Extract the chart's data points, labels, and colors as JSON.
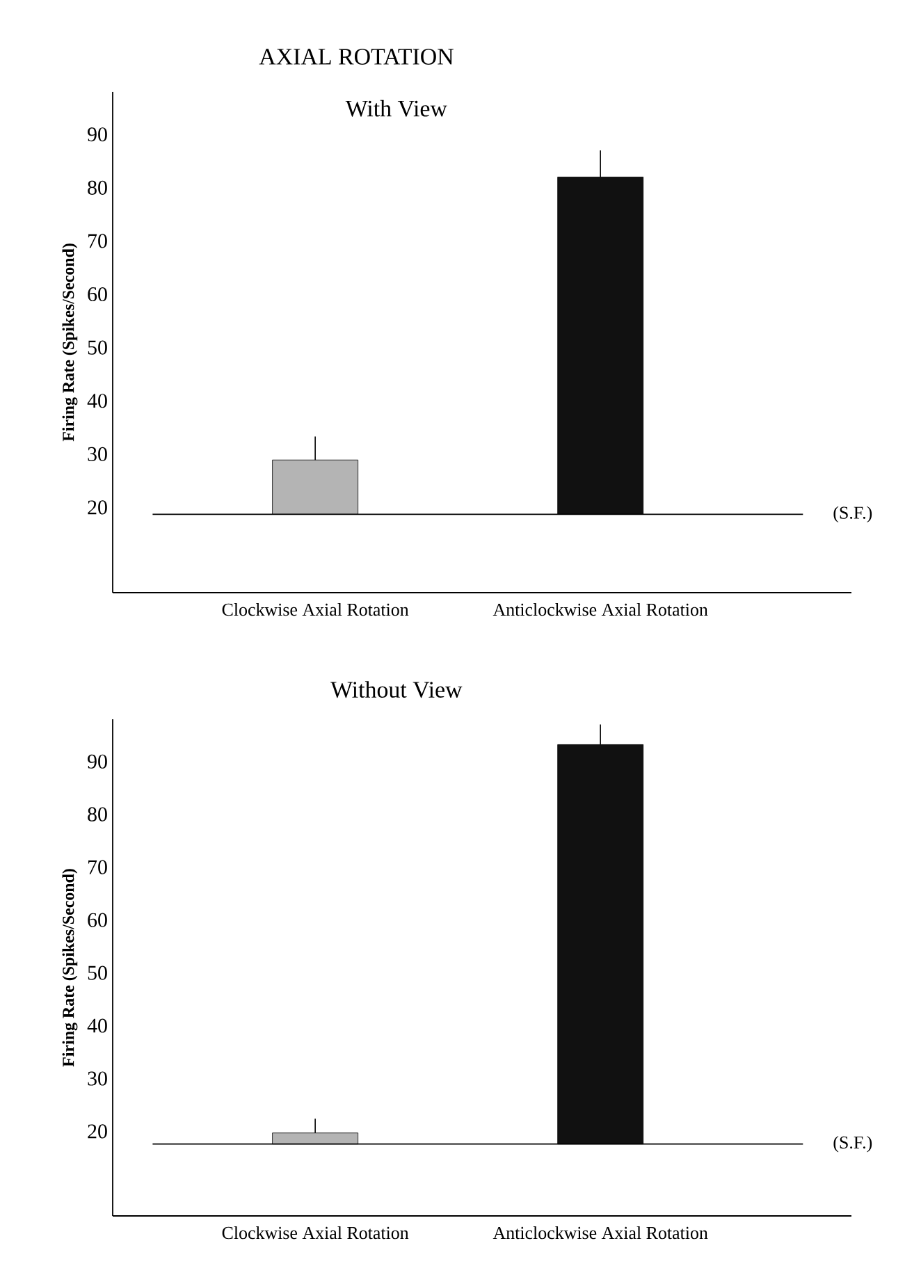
{
  "chart_data": [
    {
      "type": "bar",
      "title": "AXIAL ROTATION",
      "subtitle": "With View",
      "ylabel": "Firing Rate (Spikes/Second)",
      "categories": [
        "Clockwise Axial Rotation",
        "Anticlockwise Axial Rotation"
      ],
      "base": [
        18.7,
        18.7
      ],
      "values": [
        10.2,
        63.3
      ],
      "colors": [
        "#b4b4b4",
        "#111111"
      ],
      "errors": [
        [
          28.9,
          33.3
        ],
        [
          82,
          87
        ]
      ],
      "ylim": [
        4,
        98
      ],
      "yticks": [
        20,
        30,
        40,
        50,
        60,
        70,
        80,
        90
      ],
      "ref_lines": [
        {
          "axis": "y",
          "value": 18.7,
          "label": "(S.F.)"
        }
      ]
    },
    {
      "type": "bar",
      "title": "Without View",
      "ylabel": "Firing Rate (Spikes/Second)",
      "categories": [
        "Clockwise Axial Rotation",
        "Anticlockwise Axial Rotation"
      ],
      "base": [
        17.6,
        17.6
      ],
      "values": [
        2.1,
        75.6
      ],
      "colors": [
        "#b4b4b4",
        "#111111"
      ],
      "errors": [
        [
          19.7,
          22.4
        ],
        [
          93.2,
          97
        ]
      ],
      "ylim": [
        4,
        98
      ],
      "yticks": [
        20,
        30,
        40,
        50,
        60,
        70,
        80,
        90
      ],
      "ref_lines": [
        {
          "axis": "y",
          "value": 17.6,
          "label": "(S.F.)"
        }
      ]
    }
  ]
}
